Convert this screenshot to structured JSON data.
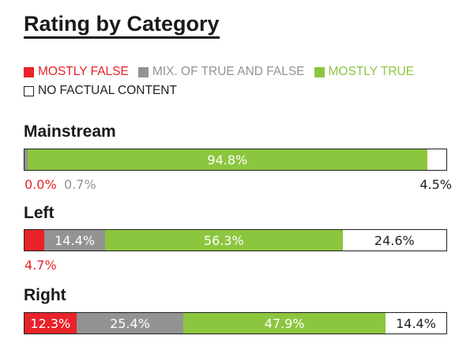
{
  "chart_data": {
    "type": "bar",
    "stacked": true,
    "orientation": "horizontal",
    "title": "Rating by Category",
    "legend": [
      {
        "label": "MOSTLY FALSE",
        "color": "#e8232a"
      },
      {
        "label": "MIX. OF TRUE AND FALSE",
        "color": "#939393"
      },
      {
        "label": "MOSTLY TRUE",
        "color": "#8cc63f"
      },
      {
        "label": "NO FACTUAL CONTENT",
        "color": "#ffffff"
      }
    ],
    "categories": [
      "Mainstream",
      "Left",
      "Right"
    ],
    "series": [
      {
        "name": "MOSTLY FALSE",
        "values": [
          0.0,
          4.7,
          12.3
        ],
        "labels": [
          "0.0%",
          "4.7%",
          "12.3%"
        ]
      },
      {
        "name": "MIX. OF TRUE AND FALSE",
        "values": [
          0.7,
          14.4,
          25.4
        ],
        "labels": [
          "0.7%",
          "14.4%",
          "25.4%"
        ]
      },
      {
        "name": "MOSTLY TRUE",
        "values": [
          94.8,
          56.3,
          47.9
        ],
        "labels": [
          "94.8%",
          "56.3%",
          "47.9%"
        ]
      },
      {
        "name": "NO FACTUAL CONTENT",
        "values": [
          4.5,
          24.6,
          14.4
        ],
        "labels": [
          "4.5%",
          "24.6%",
          "14.4%"
        ]
      }
    ]
  }
}
